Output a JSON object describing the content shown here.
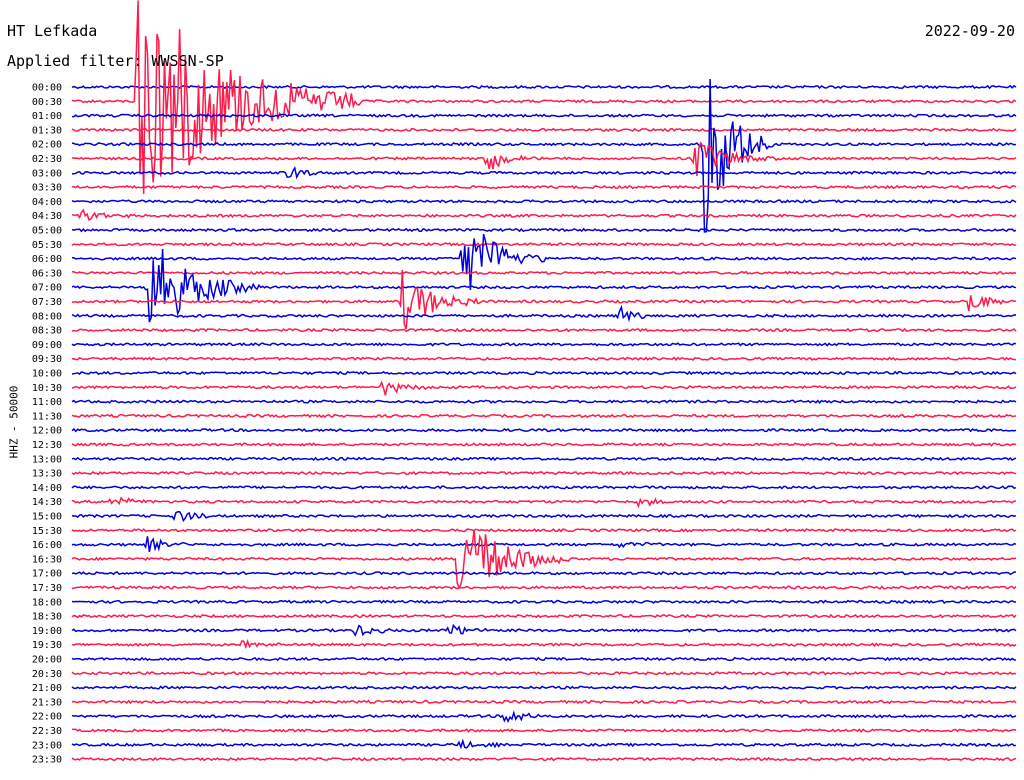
{
  "chart_data": {
    "type": "line",
    "title": "HT Lefkada",
    "date": "2022-09-20",
    "filter_text": "Applied filter: WWSSN-SP",
    "ylabel": "HHZ - 50000",
    "colors": [
      "#0000dd",
      "#ff1a4a"
    ],
    "rows": [
      "00:00",
      "00:30",
      "01:00",
      "01:30",
      "02:00",
      "02:30",
      "03:00",
      "03:30",
      "04:00",
      "04:30",
      "05:00",
      "05:30",
      "06:00",
      "06:30",
      "07:00",
      "07:30",
      "08:00",
      "08:30",
      "09:00",
      "09:30",
      "10:00",
      "10:30",
      "11:00",
      "11:30",
      "12:00",
      "12:30",
      "13:00",
      "13:30",
      "14:00",
      "14:30",
      "15:00",
      "15:30",
      "16:00",
      "16:30",
      "17:00",
      "17:30",
      "18:00",
      "18:30",
      "19:00",
      "19:30",
      "20:00",
      "20:30",
      "21:00",
      "21:30",
      "22:00",
      "22:30",
      "23:00",
      "23:30"
    ],
    "events": [
      {
        "row": 1,
        "t": 0.07,
        "amp": 9.0,
        "dur": 0.08
      },
      {
        "row": 4,
        "t": 0.67,
        "amp": 7.0,
        "dur": 0.025
      },
      {
        "row": 5,
        "t": 0.44,
        "amp": 1.0,
        "dur": 0.02
      },
      {
        "row": 5,
        "t": 0.66,
        "amp": 1.5,
        "dur": 0.03
      },
      {
        "row": 6,
        "t": 0.23,
        "amp": 0.5,
        "dur": 0.02
      },
      {
        "row": 9,
        "t": 0.01,
        "amp": 0.6,
        "dur": 0.02
      },
      {
        "row": 12,
        "t": 0.415,
        "amp": 3.5,
        "dur": 0.03
      },
      {
        "row": 14,
        "t": 0.08,
        "amp": 4.0,
        "dur": 0.04
      },
      {
        "row": 15,
        "t": 0.35,
        "amp": 2.2,
        "dur": 0.03
      },
      {
        "row": 15,
        "t": 0.95,
        "amp": 0.8,
        "dur": 0.02
      },
      {
        "row": 16,
        "t": 0.58,
        "amp": 0.6,
        "dur": 0.02
      },
      {
        "row": 21,
        "t": 0.33,
        "amp": 0.6,
        "dur": 0.02
      },
      {
        "row": 29,
        "t": 0.04,
        "amp": 0.5,
        "dur": 0.02
      },
      {
        "row": 29,
        "t": 0.6,
        "amp": 0.3,
        "dur": 0.02
      },
      {
        "row": 30,
        "t": 0.11,
        "amp": 0.5,
        "dur": 0.02
      },
      {
        "row": 32,
        "t": 0.08,
        "amp": 0.6,
        "dur": 0.02
      },
      {
        "row": 32,
        "t": 0.58,
        "amp": 0.3,
        "dur": 0.02
      },
      {
        "row": 33,
        "t": 0.41,
        "amp": 3.5,
        "dur": 0.04
      },
      {
        "row": 38,
        "t": 0.3,
        "amp": 0.5,
        "dur": 0.02
      },
      {
        "row": 38,
        "t": 0.4,
        "amp": 0.5,
        "dur": 0.02
      },
      {
        "row": 39,
        "t": 0.18,
        "amp": 0.3,
        "dur": 0.02
      },
      {
        "row": 44,
        "t": 0.46,
        "amp": 0.6,
        "dur": 0.02
      },
      {
        "row": 46,
        "t": 0.41,
        "amp": 0.4,
        "dur": 0.02
      }
    ]
  }
}
